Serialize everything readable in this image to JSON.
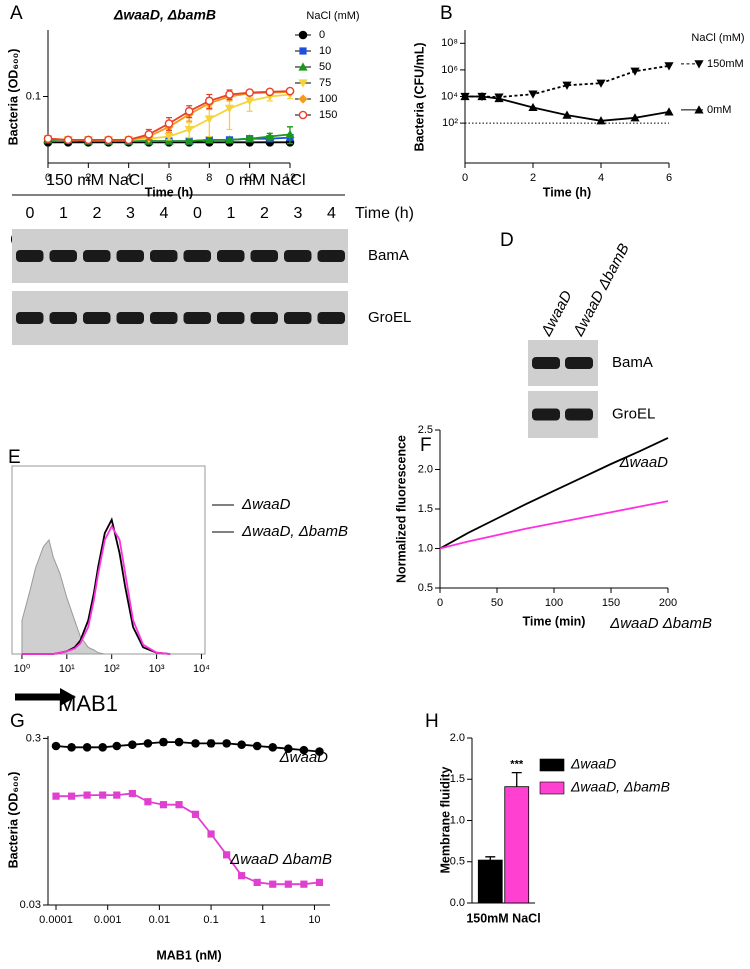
{
  "chart_data": [
    {
      "type": "line",
      "panel": "A",
      "title": "ΔwaaD, ΔbamB",
      "xlabel": "Time (h)",
      "ylabel": "Bacteria (OD₆₀₀)",
      "x": [
        0,
        1,
        2,
        3,
        4,
        5,
        6,
        7,
        8,
        9,
        10,
        11,
        12
      ],
      "xlim": [
        0,
        12
      ],
      "xticks": [
        0,
        2,
        4,
        6,
        8,
        10,
        12
      ],
      "logy": true,
      "ylim": [
        0.02,
        0.5
      ],
      "yticks": [
        0.1
      ],
      "legend": "right",
      "legend_title": "NaCl (mM)",
      "series": [
        {
          "name": "0",
          "color": "#000000",
          "marker": "circle",
          "values": [
            0.033,
            0.033,
            0.033,
            0.033,
            0.033,
            0.033,
            0.033,
            0.033,
            0.033,
            0.033,
            0.033,
            0.033,
            0.033
          ]
        },
        {
          "name": "10",
          "color": "#1f4fe0",
          "marker": "square",
          "values": [
            0.035,
            0.035,
            0.035,
            0.034,
            0.034,
            0.034,
            0.034,
            0.034,
            0.035,
            0.035,
            0.036,
            0.036,
            0.037
          ]
        },
        {
          "name": "50",
          "color": "#1a9a1a",
          "marker": "triangle",
          "values": [
            0.035,
            0.035,
            0.034,
            0.034,
            0.034,
            0.034,
            0.034,
            0.034,
            0.035,
            0.035,
            0.036,
            0.038,
            0.04
          ],
          "errors": [
            0,
            0,
            0,
            0,
            0,
            0,
            0,
            0,
            0,
            0,
            0.002,
            0.003,
            0.008
          ]
        },
        {
          "name": "75",
          "color": "#f5d33a",
          "marker": "triangle-down",
          "values": [
            0.036,
            0.035,
            0.035,
            0.035,
            0.035,
            0.036,
            0.038,
            0.045,
            0.058,
            0.075,
            0.09,
            0.1,
            0.105
          ],
          "errors": [
            0,
            0,
            0,
            0,
            0,
            0,
            0.003,
            0.008,
            0.02,
            0.03,
            0.02,
            0.01,
            0.01
          ]
        },
        {
          "name": "100",
          "color": "#f59a1a",
          "marker": "diamond",
          "values": [
            0.036,
            0.035,
            0.035,
            0.035,
            0.035,
            0.038,
            0.048,
            0.065,
            0.085,
            0.1,
            0.108,
            0.11,
            0.112
          ],
          "errors": [
            0,
            0,
            0,
            0,
            0,
            0.003,
            0.006,
            0.01,
            0.012,
            0.01,
            0.006,
            0.004,
            0.004
          ]
        },
        {
          "name": "150",
          "color": "#e8402a",
          "marker": "open-circle",
          "values": [
            0.036,
            0.035,
            0.035,
            0.035,
            0.035,
            0.04,
            0.052,
            0.07,
            0.09,
            0.105,
            0.11,
            0.112,
            0.114
          ],
          "errors": [
            0,
            0,
            0,
            0,
            0,
            0.005,
            0.008,
            0.01,
            0.015,
            0.012,
            0.006,
            0.004,
            0.004
          ]
        }
      ]
    },
    {
      "type": "line",
      "panel": "B",
      "xlabel": "Time (h)",
      "ylabel": "Bacteria (CFU/mL)",
      "x": [
        0,
        0.5,
        1,
        2,
        3,
        4,
        5,
        6
      ],
      "xlim": [
        0,
        6
      ],
      "xticks": [
        0,
        2,
        4,
        6
      ],
      "logy": true,
      "ylim": [
        0.1,
        1000000000
      ],
      "yticks": [
        {
          "value": 100,
          "label": "10²"
        },
        {
          "value": 10000,
          "label": "10⁴"
        },
        {
          "value": 1000000,
          "label": "10⁶"
        },
        {
          "value": 100000000,
          "label": "10⁸"
        }
      ],
      "hline": 100,
      "legend": "end",
      "legend_title": "NaCl (mM)",
      "series": [
        {
          "name": "150mM",
          "color": "#000000",
          "marker": "triangle-down",
          "dash": true,
          "values": [
            10000,
            10000,
            9000,
            15000,
            70000,
            100000,
            800000,
            2000000
          ]
        },
        {
          "name": "0mM",
          "color": "#000000",
          "marker": "triangle",
          "values": [
            10000,
            10000,
            7000,
            1500,
            400,
            150,
            250,
            700
          ]
        }
      ]
    },
    {
      "type": "line",
      "panel": "E",
      "xlabel": "MAB1",
      "frame": "box",
      "x": [
        1,
        1.5,
        2,
        3,
        4,
        5,
        7,
        10,
        15,
        20,
        30,
        40,
        50,
        70,
        100,
        150,
        200,
        300,
        500,
        1000,
        2000
      ],
      "logx": true,
      "xlim": [
        0.6,
        12000
      ],
      "xticks": [
        {
          "value": 1,
          "label": "10⁰"
        },
        {
          "value": 10,
          "label": "10¹"
        },
        {
          "value": 100,
          "label": "10²"
        },
        {
          "value": 1000,
          "label": "10³"
        },
        {
          "value": 10000,
          "label": "10⁴"
        }
      ],
      "ylim": [
        0,
        140
      ],
      "legend": "lines",
      "series": [
        {
          "color": "#9a9a9a",
          "fill": "#cfcfcf",
          "marker": "none",
          "values": [
            25,
            47,
            64,
            80,
            85,
            72,
            60,
            42,
            25,
            13,
            5,
            3,
            1,
            0,
            0,
            0,
            0,
            0,
            0,
            0,
            0
          ]
        },
        {
          "name": "ΔwaaD",
          "color": "#000000",
          "marker": "none",
          "values": [
            0,
            0,
            0,
            0,
            0,
            0,
            1,
            2,
            5,
            10,
            25,
            45,
            65,
            90,
            100,
            75,
            50,
            20,
            5,
            1,
            0
          ]
        },
        {
          "name": "ΔwaaD, ΔbamB",
          "color": "#ff30e0",
          "marker": "none",
          "values": [
            0,
            0,
            0,
            0,
            0,
            0,
            1,
            2,
            4,
            8,
            20,
            40,
            60,
            85,
            95,
            85,
            60,
            25,
            7,
            1,
            0
          ]
        }
      ]
    },
    {
      "type": "line",
      "panel": "F",
      "xlabel": "Time (min)",
      "ylabel": "Normalized fluorescence",
      "x": [
        0,
        25,
        50,
        75,
        100,
        125,
        150,
        175,
        200
      ],
      "xlim": [
        0,
        200
      ],
      "xticks": [
        0,
        50,
        100,
        150,
        200
      ],
      "ylim": [
        0.5,
        2.5
      ],
      "yticks": [
        0.5,
        {
          "value": 1,
          "label": "1.0"
        },
        1.5,
        {
          "value": 2,
          "label": "2.0"
        },
        2.5
      ],
      "legend": "curve",
      "series": [
        {
          "name": "ΔwaaD",
          "color": "#000000",
          "marker": "none",
          "values": [
            1.0,
            1.2,
            1.38,
            1.56,
            1.73,
            1.9,
            2.07,
            2.23,
            2.4
          ]
        },
        {
          "name": "ΔwaaD ΔbamB",
          "color": "#ff30e0",
          "marker": "none",
          "values": [
            1.0,
            1.09,
            1.17,
            1.25,
            1.32,
            1.39,
            1.46,
            1.53,
            1.6
          ]
        }
      ]
    },
    {
      "type": "line",
      "panel": "G",
      "xlabel": "MAB1 (nM)",
      "ylabel": "Bacteria (OD₆₀₀)",
      "x": [
        0.0001,
        0.0002,
        0.0004,
        0.0008,
        0.0015,
        0.003,
        0.006,
        0.012,
        0.024,
        0.05,
        0.1,
        0.2,
        0.39,
        0.78,
        1.56,
        3.125,
        6.25,
        12.5
      ],
      "logx": true,
      "xlim": [
        7e-05,
        20
      ],
      "xticks": [
        0.0001,
        0.001,
        0.01,
        0.1,
        1,
        10
      ],
      "logy": true,
      "ylim": [
        0.03,
        0.31
      ],
      "yticks": [
        0.03,
        0.3
      ],
      "legend": "curve",
      "series": [
        {
          "name": "ΔwaaD",
          "color": "#000000",
          "marker": "circle",
          "values": [
            0.27,
            0.265,
            0.265,
            0.265,
            0.27,
            0.275,
            0.28,
            0.285,
            0.285,
            0.28,
            0.28,
            0.28,
            0.275,
            0.27,
            0.265,
            0.26,
            0.255,
            0.25
          ],
          "errors": [
            0,
            0,
            0,
            0,
            0,
            0,
            0,
            0.012,
            0.01,
            0.01,
            0.012,
            0.01,
            0,
            0,
            0,
            0,
            0,
            0
          ]
        },
        {
          "name": "ΔwaaD ΔbamB",
          "color": "#e040d0",
          "marker": "square",
          "values": [
            0.135,
            0.135,
            0.137,
            0.137,
            0.137,
            0.14,
            0.125,
            0.12,
            0.12,
            0.105,
            0.08,
            0.06,
            0.045,
            0.041,
            0.04,
            0.04,
            0.04,
            0.041
          ]
        }
      ]
    },
    {
      "type": "bar",
      "panel": "H",
      "ylabel": "Membrane fluidity",
      "categories": [
        "150mM NaCl"
      ],
      "ylim": [
        0,
        2
      ],
      "yticks": [
        {
          "value": 0,
          "label": "0.0"
        },
        0.5,
        {
          "value": 1,
          "label": "1.0"
        },
        1.5,
        {
          "value": 2,
          "label": "2.0"
        }
      ],
      "legend": "boxes",
      "annotation": "***",
      "series": [
        {
          "name": "ΔwaaD",
          "color": "#000000",
          "values": [
            0.52
          ],
          "errors": [
            0.04
          ]
        },
        {
          "name": "ΔwaaD, ΔbamB",
          "color": "#ff40d0",
          "values": [
            1.41
          ],
          "errors": [
            0.17
          ]
        }
      ]
    }
  ],
  "blots": {
    "C": {
      "panel": "C",
      "groups": [
        "150 mM NaCl",
        "0 mM NaCl"
      ],
      "lanes": [
        0,
        1,
        2,
        3,
        4,
        0,
        1,
        2,
        3,
        4
      ],
      "lane_label": "Time (h)",
      "rows": [
        "BamA",
        "GroEL"
      ]
    },
    "D": {
      "panel": "D",
      "columns": [
        "ΔwaaD",
        "ΔwaaD ΔbamB"
      ],
      "rows": [
        "BamA",
        "GroEL"
      ]
    }
  }
}
